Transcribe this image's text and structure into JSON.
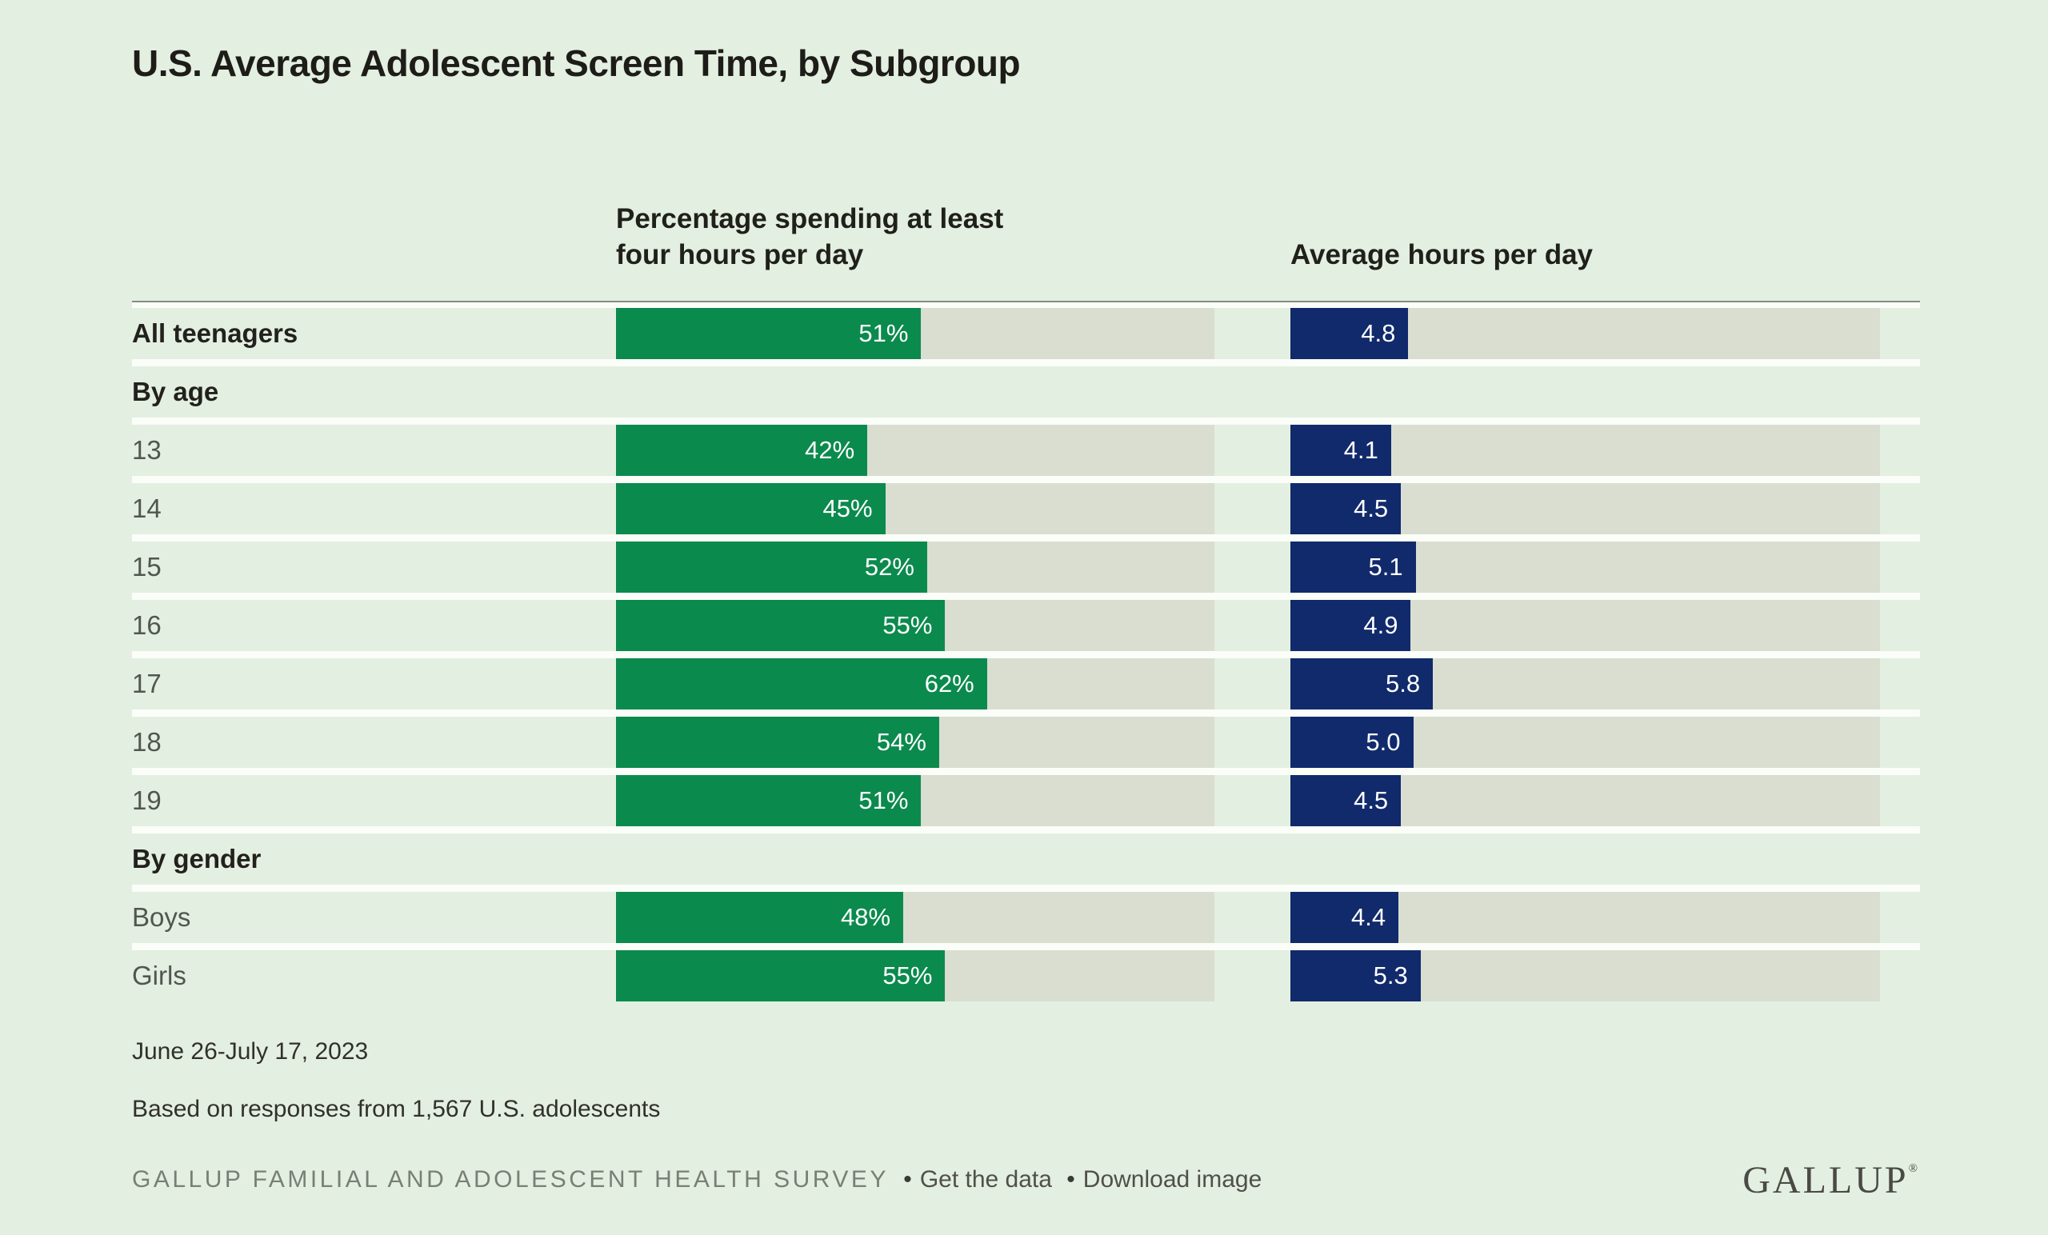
{
  "title": "U.S. Average Adolescent Screen Time, by Subgroup",
  "columns": {
    "percent": "Percentage spending at least four hours per day",
    "hours": "Average hours per day"
  },
  "scales": {
    "percent_max": 100,
    "hours_max": 24
  },
  "rows": [
    {
      "type": "data",
      "label": "All teenagers",
      "emphasis": true,
      "percent": 51,
      "percent_label": "51%",
      "hours": 4.8,
      "hours_label": "4.8"
    },
    {
      "type": "section",
      "label": "By age"
    },
    {
      "type": "data",
      "label": "13",
      "percent": 42,
      "percent_label": "42%",
      "hours": 4.1,
      "hours_label": "4.1"
    },
    {
      "type": "data",
      "label": "14",
      "percent": 45,
      "percent_label": "45%",
      "hours": 4.5,
      "hours_label": "4.5"
    },
    {
      "type": "data",
      "label": "15",
      "percent": 52,
      "percent_label": "52%",
      "hours": 5.1,
      "hours_label": "5.1"
    },
    {
      "type": "data",
      "label": "16",
      "percent": 55,
      "percent_label": "55%",
      "hours": 4.9,
      "hours_label": "4.9"
    },
    {
      "type": "data",
      "label": "17",
      "percent": 62,
      "percent_label": "62%",
      "hours": 5.8,
      "hours_label": "5.8"
    },
    {
      "type": "data",
      "label": "18",
      "percent": 54,
      "percent_label": "54%",
      "hours": 5.0,
      "hours_label": "5.0"
    },
    {
      "type": "data",
      "label": "19",
      "percent": 51,
      "percent_label": "51%",
      "hours": 4.5,
      "hours_label": "4.5"
    },
    {
      "type": "section",
      "label": "By gender"
    },
    {
      "type": "data",
      "label": "Boys",
      "percent": 48,
      "percent_label": "48%",
      "hours": 4.4,
      "hours_label": "4.4"
    },
    {
      "type": "data",
      "label": "Girls",
      "percent": 55,
      "percent_label": "55%",
      "hours": 5.3,
      "hours_label": "5.3"
    }
  ],
  "notes": [
    "June 26-July 17, 2023",
    "Based on responses from 1,567 U.S. adolescents"
  ],
  "footer": {
    "survey_name": "GALLUP FAMILIAL AND ADOLESCENT HEALTH SURVEY",
    "bullet": "•",
    "links": [
      "Get the data",
      "Download image"
    ],
    "logo": "GALLUP",
    "logo_mark": "®"
  },
  "colors": {
    "background": "#e3efe0",
    "bar_track": "#d9ded1",
    "percent_bar": "#0b8a4d",
    "hours_bar": "#112a6c",
    "separator": "#fbfdf8",
    "text_dark": "#22211d",
    "text_gray_label": "#51564f"
  },
  "chart_data": {
    "type": "bar",
    "orientation": "horizontal",
    "title": "U.S. Average Adolescent Screen Time, by Subgroup",
    "categories": [
      "All teenagers",
      "13",
      "14",
      "15",
      "16",
      "17",
      "18",
      "19",
      "Boys",
      "Girls"
    ],
    "groups": [
      {
        "label": "By age",
        "categories": [
          "13",
          "14",
          "15",
          "16",
          "17",
          "18",
          "19"
        ]
      },
      {
        "label": "By gender",
        "categories": [
          "Boys",
          "Girls"
        ]
      }
    ],
    "series": [
      {
        "name": "Percentage spending at least four hours per day",
        "unit": "%",
        "color": "#0b8a4d",
        "xlim": [
          0,
          100
        ],
        "values": [
          51,
          42,
          45,
          52,
          55,
          62,
          54,
          51,
          48,
          55
        ]
      },
      {
        "name": "Average hours per day",
        "unit": "hours",
        "color": "#112a6c",
        "xlim": [
          0,
          24
        ],
        "values": [
          4.8,
          4.1,
          4.5,
          5.1,
          4.9,
          5.8,
          5.0,
          4.5,
          4.4,
          5.3
        ]
      }
    ],
    "grid": false,
    "legend_position": "column-headers",
    "value_labels": "inside-end",
    "source_note": "June 26-July 17, 2023 | Based on responses from 1,567 U.S. adolescents | GALLUP FAMILIAL AND ADOLESCENT HEALTH SURVEY"
  }
}
